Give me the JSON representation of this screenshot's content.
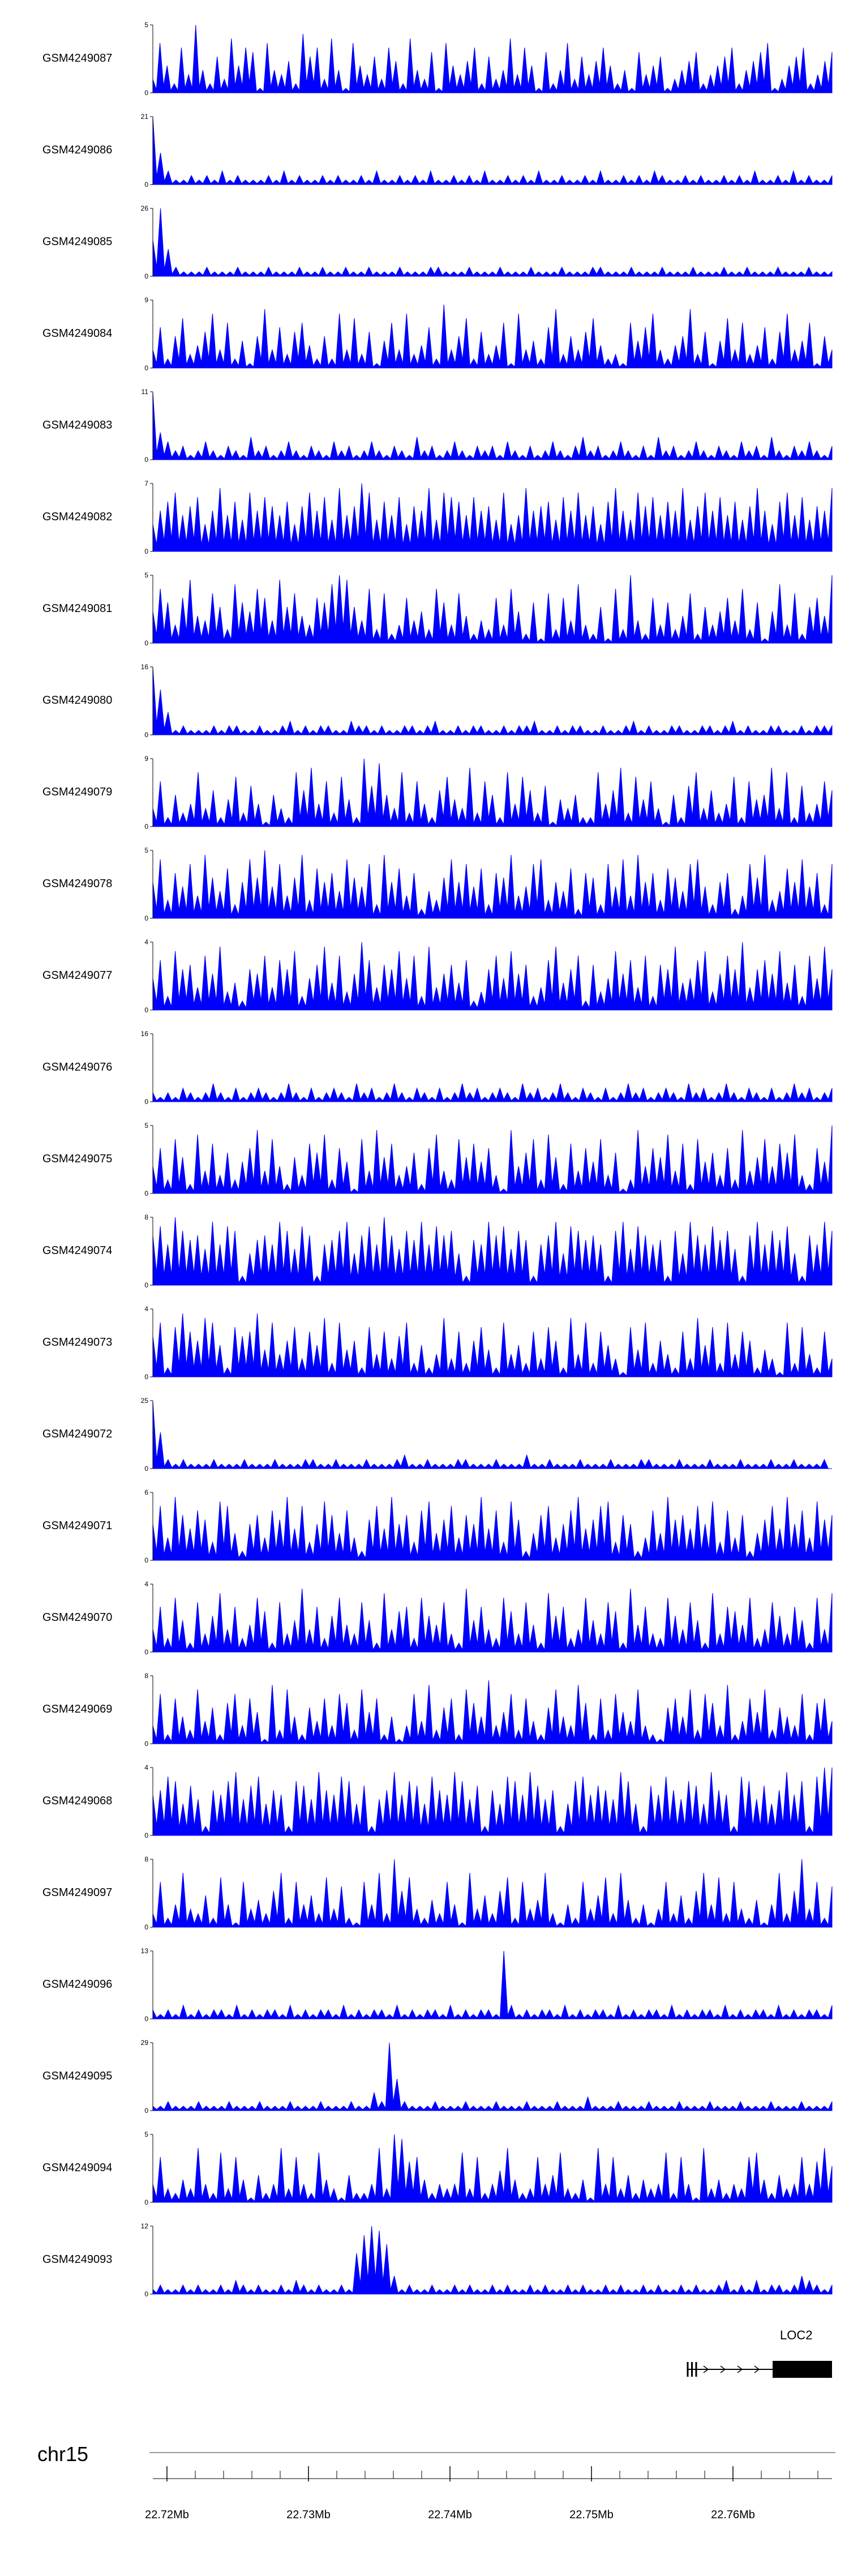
{
  "chart_data": {
    "type": "area",
    "title": "",
    "chromosome_label": "chr15",
    "signal_color": "#0000ff",
    "values_encoding": "one hex digit (0-f) per horizontal bin; value = digit/15 * track ymax",
    "x_axis": {
      "range_mb": [
        22.719,
        22.767
      ],
      "major_ticks_mb": [
        22.72,
        22.73,
        22.74,
        22.75,
        22.76
      ],
      "tick_labels": [
        "22.72Mb",
        "22.73Mb",
        "22.74Mb",
        "22.75Mb",
        "22.76Mb"
      ],
      "minor_tick_interval_mb": 0.002
    },
    "series": [
      {
        "name": "GSM4249087",
        "ymax": 5,
        "ymin": 0,
        "values_hex": "3b62a4f5283c6a91b5472d8a3c51b6483a72c5391b647a2835c4a61925b3847a62519468135792468a2579b1368a2479"
      },
      {
        "name": "GSM4249086",
        "ymax": 21,
        "ymin": 0,
        "values_hex": "f7311212131211121312112121121311212131121213112121311211213112121321121211212131121312112"
      },
      {
        "name": "GSM4249085",
        "ymax": 26,
        "ymin": 0,
        "values_hex": "8f621112111211121112112112112111211122111211121112111211122111211121112111211211121112111"
      },
      {
        "name": "GSM4249084",
        "ymax": 9,
        "ymin": 0,
        "values_hex": "4927b358c4a2617d4938a5272c4b3816a4c3592e47b2835a1c4629d3748b5231a69c4257d3816b4a35928c46a174"
      },
      {
        "name": "GSM4249083",
        "ymax": 11,
        "ymin": 0,
        "values_hex": "f642312421321523124213214231242132152312421323142131242135231242131523124213214231521324213"
      },
      {
        "name": "GSM4249082",
        "ymax": 7,
        "ymin": 0,
        "values_hex": "69bd8ac69e8b7d9ca8b6ad9c7e8afd7b8c6a9e7dcb8c9a7d68e9ab7c9d8a6be97dac8b9e7ad9c8b7ae96bd8c7a9e"
      },
      {
        "name": "GSM4249081",
        "ymax": 5,
        "ymin": 0,
        "values_hex": "7c94ae65b83d97ca5e8b64a9dfe85c3b24a573c94b6253a4c7291b3a5d4281c3f52a4936b2847a5c3917d4b28a6f"
      },
      {
        "name": "GSM4249080",
        "ymax": 16,
        "ymin": 0,
        "values_hex": "fa5121112122112112312122113221211221231121221121223112122112112312112211221231211221121222"
      },
      {
        "name": "GSM4249079",
        "ymax": 9,
        "ymin": 0,
        "values_hex": "4a2735c4826b3951742c8d5a3b62f9e74c3a528b64d3a72c5b839164722c58d3b6a41729c4835b2a67d4c2935a8"
      },
      {
        "name": "GSM4249078",
        "ymax": 5,
        "ymin": 0,
        "values_hex": "8d4a7c5e96b38d9f7c59e4b8a6d97c3e8b5a2649d8c7b3a9e57cd486b2a93c7d5e8a4b96cd738a25c9e46b8d7a3c"
      },
      {
        "name": "GSM4249077",
        "ymax": 4,
        "ymin": 0,
        "values_hex": "7b3d9a5c8e46298c5b9d37ae6c48fb5a9d7c3e58a6b249c7d8a35be69c2a47d8b5c3a9e67bd48c9f59b8d6a3c7e9"
      },
      {
        "name": "GSM4249076",
        "ymax": 16,
        "ymin": 0,
        "values_hex": "2121321242131232124213123214231242132131242312321423124213213124231232142312421321312423123"
      },
      {
        "name": "GSM4249075",
        "ymax": 5,
        "ymin": 0,
        "values_hex": "6a3c82d5b4937ae5c6284b9d3a71c5e8b4692ad53c8b7a41e69c3d82b5a7c4913e6a8d5b2c794a3e58c6b9d42a7f"
      },
      {
        "name": "GSM4249074",
        "ymax": 8,
        "ymin": 0,
        "values_hex": "bd9fcab8e9dc27ab9ec8db29ace7bd9fb8cae9dbc72a9ebd8ca29be7dcab92ce8db9a2c7eb9dac82be9cad72b9ec"
      },
      {
        "name": "GSM4249073",
        "ymax": 4,
        "ymin": 0,
        "values_hex": "9c2bea8dc72b9ae6c58b4a7d3c682b5a49c3725d4a38b62c573a4b82d5c3a741b6c3852a4d7b3c5a82641c3b52a4"
      },
      {
        "name": "GSM4249072",
        "ymax": 25,
        "ymin": 0,
        "values_hex": "f82121112111211121112211211121112311211122111211131121112111211122111211121112111211211120"
      },
      {
        "name": "GSM4249071",
        "ymax": 6,
        "ymin": 0,
        "values_hex": "8c5ea7b94dc628a5b9e7c48da6b529c7e8a4bd69c5a8e7b4d926ac58be79cd4a825b6e9a7c8d4b5a269c7e8b5d9a"
      },
      {
        "name": "GSM4249070",
        "ymax": 4,
        "ymin": 0,
        "values_hex": "5a3c72b48d5a36c92b47e5a38c64b72d59a3c86b42e7a53c94b62d8a35c74b92e6a43c85b72d4a96c35b84a72c5d"
      },
      {
        "name": "GSM4249069",
        "ymax": 8,
        "ymin": 0,
        "values_hex": "4b2a63c5829b4a71d3c6285a4b93c7a2614b5d38a2c96e47b3a528c64d92a3b75c4218a6c3b94d25a7c3864b29a5"
      },
      {
        "name": "GSM4249068",
        "ymax": 4,
        "ymin": 0,
        "values_hex": "9adc7b82a9ce8bd7a92cb8ea9dc7b28ae9cb7da9ec8b2a7dc9eb8a27cd9ba8ec72b9da8cb7ea92dc8b7ae9c2dff"
      },
      {
        "name": "GSM4249097",
        "ymax": 8,
        "ymin": 0,
        "values_hex": "3a25c4372b51a4638c2a573b4921a5c3f8b4263a51c4738b2a46c3152a47b3c62514a3728c5b3a42615c38f4a29"
      },
      {
        "name": "GSM4249096",
        "ymax": 13,
        "ymin": 0,
        "values_hex": "2121312122131212213121221312122131212213121221f3121221312122131212213121221312122131212213"
      },
      {
        "name": "GSM4249095",
        "ymax": 29,
        "ymin": 0,
        "values_hex": "1121112111211121112111211121142f7211121112111211121112111311121112111211121112111211121112"
      },
      {
        "name": "GSM4249094",
        "ymax": 5,
        "ymin": 0,
        "values_hex": "4a3253c42b3a51624c3a42b5316224c3fe9a52434b3a247c523a46b3251c4a362534b2a41c35243ab52634a49c8"
      },
      {
        "name": "GSM4249093",
        "ymax": 12,
        "ymin": 0,
        "values_hex": "1211212112132121121321211219dfeb41211211212112121121211212112121121211212112312131221243212"
      }
    ],
    "gene_annotation": {
      "label": "LOC2",
      "strand": "+",
      "line_start_mb": 22.7568,
      "box_start_mb": 22.7628,
      "box_end_mb": 22.767,
      "exon_tick_mb": [
        22.7568,
        22.7571,
        22.7574
      ],
      "color": "#000000"
    }
  }
}
